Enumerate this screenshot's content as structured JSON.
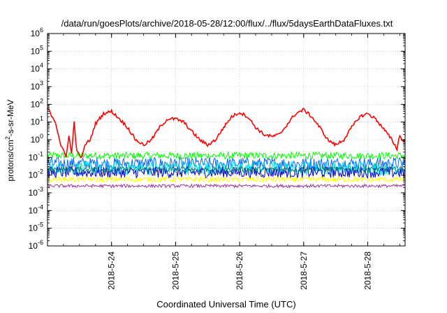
{
  "chart_data": {
    "type": "line",
    "title": "/data/run/goesPlots/archive/2018-05-28/12:00/flux/../flux/5daysEarthDataFluxes.txt",
    "xlabel": "Coordinated Universal Time (UTC)",
    "ylabel": {
      "pre": "protons/cm",
      "sup": "2",
      "post": "-s-sr-MeV"
    },
    "y_scale": "log",
    "ylim": [
      1e-06,
      1000000.0
    ],
    "xlim": [
      "2018-05-23 00:00",
      "2018-05-28 14:00"
    ],
    "grid": true,
    "y_ticks": [
      {
        "base": "10",
        "exp": "-6",
        "value": -6
      },
      {
        "base": "10",
        "exp": "-5",
        "value": -5
      },
      {
        "base": "10",
        "exp": "-4",
        "value": -4
      },
      {
        "base": "10",
        "exp": "-3",
        "value": -3
      },
      {
        "base": "10",
        "exp": "-2",
        "value": -2
      },
      {
        "base": "10",
        "exp": "-1",
        "value": -1
      },
      {
        "base": "10",
        "exp": "0",
        "value": 0
      },
      {
        "base": "10",
        "exp": "1",
        "value": 1
      },
      {
        "base": "10",
        "exp": "2",
        "value": 2
      },
      {
        "base": "10",
        "exp": "3",
        "value": 3
      },
      {
        "base": "10",
        "exp": "4",
        "value": 4
      },
      {
        "base": "10",
        "exp": "5",
        "value": 5
      },
      {
        "base": "10",
        "exp": "6",
        "value": 6
      }
    ],
    "x_ticks": [
      {
        "label": "2018-5-24",
        "date": "2018-05-24 00:00"
      },
      {
        "label": "2018-5-25",
        "date": "2018-05-25 00:00"
      },
      {
        "label": "2018-5-26",
        "date": "2018-05-26 00:00"
      },
      {
        "label": "2018-5-27",
        "date": "2018-05-27 00:00"
      },
      {
        "label": "2018-5-28",
        "date": "2018-05-28 00:00"
      }
    ],
    "series": [
      {
        "color": "#ff0000",
        "base_level": "1e-1 to 5e1",
        "points": [
          [
            "2018-05-23 00:00",
            60
          ],
          [
            "2018-05-23 03:00",
            10
          ],
          [
            "2018-05-23 05:00",
            0.5
          ],
          [
            "2018-05-23 07:00",
            0.1
          ],
          [
            "2018-05-23 08:00",
            2
          ],
          [
            "2018-05-23 09:00",
            0.15
          ],
          [
            "2018-05-23 10:00",
            10
          ],
          [
            "2018-05-23 11:00",
            0.2
          ],
          [
            "2018-05-23 13:00",
            0.1
          ],
          [
            "2018-05-23 14:00",
            0.5
          ],
          [
            "2018-05-23 16:00",
            1
          ],
          [
            "2018-05-23 18:00",
            8
          ],
          [
            "2018-05-23 21:00",
            30
          ],
          [
            "2018-05-24 00:00",
            40
          ],
          [
            "2018-05-24 03:00",
            15
          ],
          [
            "2018-05-24 06:00",
            5
          ],
          [
            "2018-05-24 09:00",
            1
          ],
          [
            "2018-05-24 12:00",
            0.5
          ],
          [
            "2018-05-24 15:00",
            1
          ],
          [
            "2018-05-24 18:00",
            5
          ],
          [
            "2018-05-24 21:00",
            15
          ],
          [
            "2018-05-25 00:00",
            15
          ],
          [
            "2018-05-25 03:00",
            10
          ],
          [
            "2018-05-25 06:00",
            3
          ],
          [
            "2018-05-25 09:00",
            1
          ],
          [
            "2018-05-25 12:00",
            0.5
          ],
          [
            "2018-05-25 15:00",
            1
          ],
          [
            "2018-05-25 18:00",
            5
          ],
          [
            "2018-05-25 21:00",
            20
          ],
          [
            "2018-05-26 00:00",
            35
          ],
          [
            "2018-05-26 03:00",
            20
          ],
          [
            "2018-05-26 06:00",
            5
          ],
          [
            "2018-05-26 09:00",
            2
          ],
          [
            "2018-05-26 12:00",
            1.5
          ],
          [
            "2018-05-26 15:00",
            2
          ],
          [
            "2018-05-26 18:00",
            8
          ],
          [
            "2018-05-26 21:00",
            30
          ],
          [
            "2018-05-27 00:00",
            50
          ],
          [
            "2018-05-27 03:00",
            20
          ],
          [
            "2018-05-27 06:00",
            5
          ],
          [
            "2018-05-27 09:00",
            1
          ],
          [
            "2018-05-27 12:00",
            0.5
          ],
          [
            "2018-05-27 15:00",
            1
          ],
          [
            "2018-05-27 18:00",
            5
          ],
          [
            "2018-05-27 21:00",
            20
          ],
          [
            "2018-05-28 00:00",
            30
          ],
          [
            "2018-05-28 03:00",
            15
          ],
          [
            "2018-05-28 06:00",
            4
          ],
          [
            "2018-05-28 09:00",
            1
          ],
          [
            "2018-05-28 11:00",
            0.3
          ],
          [
            "2018-05-28 12:00",
            2
          ],
          [
            "2018-05-28 13:00",
            0.8
          ],
          [
            "2018-05-28 14:00",
            1
          ]
        ]
      },
      {
        "color": "#00ff00",
        "band": [
          0.08,
          0.2
        ]
      },
      {
        "color": "#00dddd",
        "band": [
          0.01,
          0.06
        ]
      },
      {
        "color": "#0066ff",
        "band": [
          0.02,
          0.1
        ]
      },
      {
        "color": "#0000cc",
        "band": [
          0.007,
          0.03
        ]
      },
      {
        "color": "#ffff00",
        "band": [
          0.004,
          0.008
        ]
      },
      {
        "color": "#008080",
        "band": [
          0.015,
          0.03
        ]
      },
      {
        "color": "#993399",
        "band": [
          0.002,
          0.003
        ]
      }
    ]
  }
}
